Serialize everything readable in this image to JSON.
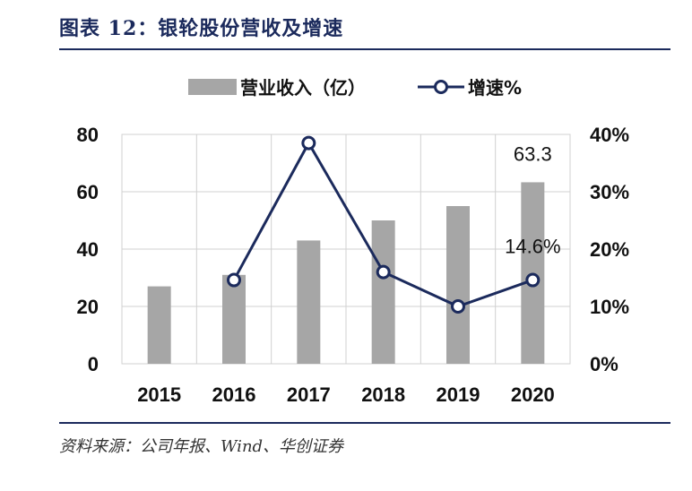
{
  "header": {
    "title": "图表 12：银轮股份营收及增速"
  },
  "footer": {
    "source": "资料来源：公司年报、Wind、华创证券"
  },
  "colors": {
    "bar": "#a6a6a6",
    "line": "#1b2a5c",
    "grid": "#d0d0d0",
    "title": "#1b2a5c"
  },
  "chart_data": {
    "type": "bar+line",
    "categories": [
      "2015",
      "2016",
      "2017",
      "2018",
      "2019",
      "2020"
    ],
    "series": [
      {
        "name": "营业收入（亿）",
        "type": "bar",
        "axis": "left",
        "values": [
          27.0,
          31.0,
          43.0,
          50.0,
          55.0,
          63.3
        ]
      },
      {
        "name": "增速%",
        "type": "line",
        "axis": "right",
        "values": [
          null,
          14.6,
          38.5,
          16.0,
          10.0,
          14.6
        ]
      }
    ],
    "y_left": {
      "lim": [
        0,
        80
      ],
      "ticks": [
        "0",
        "20",
        "40",
        "60",
        "80"
      ]
    },
    "y_right": {
      "lim": [
        0,
        40
      ],
      "ticks": [
        "0%",
        "10%",
        "20%",
        "30%",
        "40%"
      ]
    },
    "data_labels": [
      {
        "series": "营业收入（亿）",
        "category": "2020",
        "text": "63.3"
      },
      {
        "series": "增速%",
        "category": "2020",
        "text": "14.6%"
      }
    ],
    "grid": true,
    "legend": "top"
  }
}
